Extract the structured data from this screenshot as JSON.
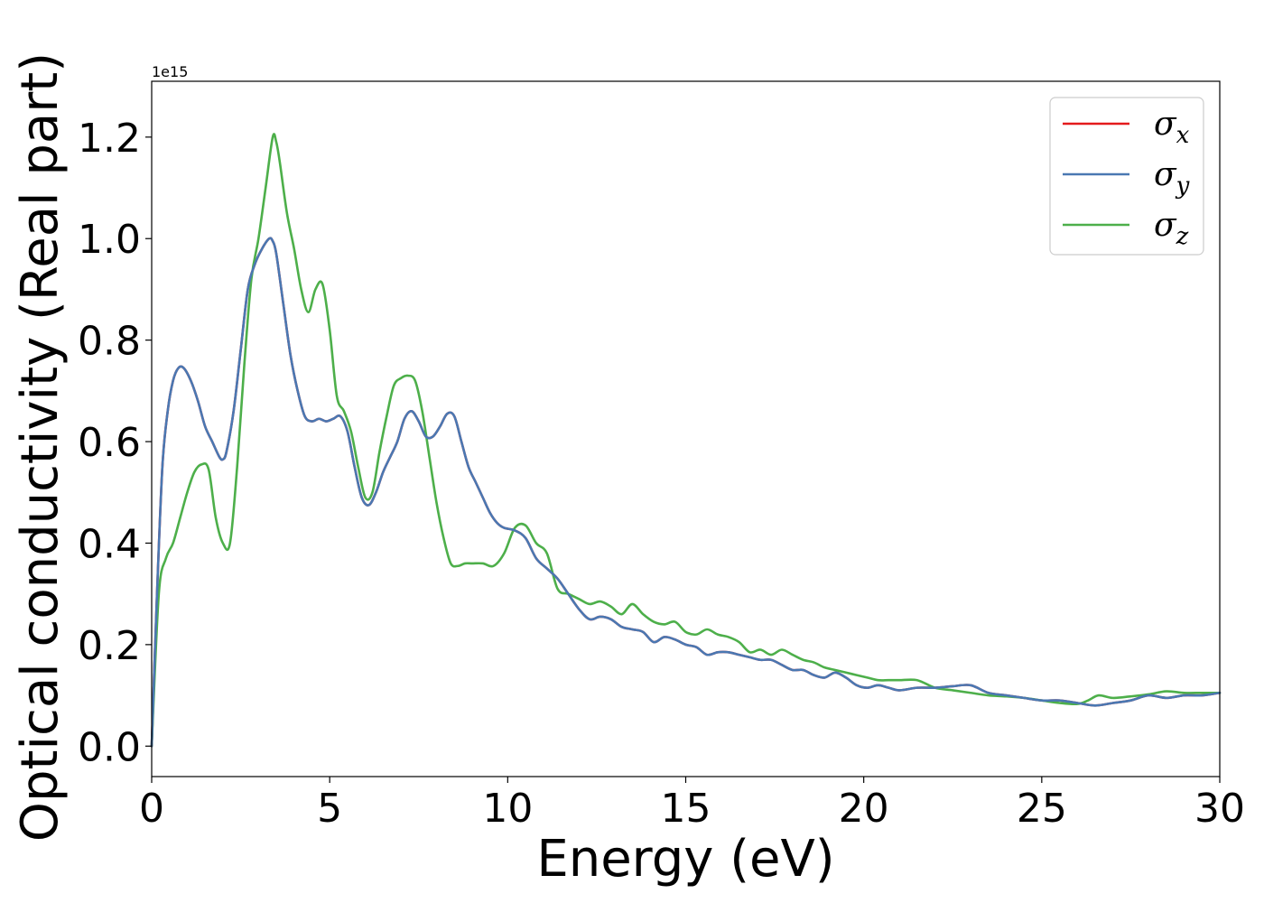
{
  "chart_data": {
    "type": "line",
    "title": "",
    "xlabel": "Energy (eV)",
    "ylabel": "Optical conductivity (Real part)",
    "y_offset_label": "1e15",
    "xlim": [
      0,
      30
    ],
    "ylim": [
      -0.06,
      1.31
    ],
    "x_ticks": [
      0,
      5,
      10,
      15,
      20,
      25,
      30
    ],
    "x_tick_labels": [
      "0",
      "5",
      "10",
      "15",
      "20",
      "25",
      "30"
    ],
    "y_ticks": [
      0.0,
      0.2,
      0.4,
      0.6,
      0.8,
      1.0,
      1.2
    ],
    "y_tick_labels": [
      "0.0",
      "0.2",
      "0.4",
      "0.6",
      "0.8",
      "1.0",
      "1.2"
    ],
    "grid": false,
    "legend_position": "top-right",
    "series": [
      {
        "name": "σx",
        "legend_base": "σ",
        "legend_sub": "x",
        "color": "#e41a1c",
        "x": [
          0,
          0.15,
          0.3,
          0.45,
          0.6,
          0.75,
          0.9,
          1.1,
          1.3,
          1.5,
          1.7,
          1.9,
          2.0,
          2.1,
          2.3,
          2.5,
          2.7,
          2.9,
          3.1,
          3.3,
          3.4,
          3.5,
          3.7,
          3.9,
          4.1,
          4.3,
          4.5,
          4.7,
          4.9,
          5.1,
          5.3,
          5.5,
          5.7,
          5.9,
          6.1,
          6.3,
          6.5,
          6.7,
          6.9,
          7.1,
          7.3,
          7.5,
          7.7,
          7.9,
          8.1,
          8.3,
          8.5,
          8.7,
          8.9,
          9.1,
          9.3,
          9.5,
          9.7,
          9.9,
          10.2,
          10.5,
          10.8,
          11.1,
          11.4,
          11.7,
          12.0,
          12.3,
          12.6,
          12.9,
          13.2,
          13.5,
          13.8,
          14.1,
          14.4,
          14.7,
          15.0,
          15.3,
          15.6,
          15.9,
          16.2,
          16.5,
          16.8,
          17.1,
          17.4,
          17.7,
          18.0,
          18.3,
          18.6,
          18.9,
          19.2,
          19.5,
          19.8,
          20.1,
          20.4,
          20.7,
          21.0,
          21.5,
          22.0,
          22.5,
          23.0,
          23.5,
          24.0,
          24.5,
          25.0,
          25.5,
          26.0,
          26.5,
          27.0,
          27.5,
          28.0,
          28.5,
          29.0,
          29.5,
          30.0
        ],
        "y": [
          0,
          0.3,
          0.55,
          0.66,
          0.72,
          0.745,
          0.745,
          0.72,
          0.68,
          0.63,
          0.6,
          0.57,
          0.565,
          0.58,
          0.66,
          0.78,
          0.9,
          0.95,
          0.98,
          1.0,
          0.995,
          0.97,
          0.87,
          0.77,
          0.7,
          0.65,
          0.64,
          0.645,
          0.64,
          0.645,
          0.65,
          0.62,
          0.55,
          0.49,
          0.475,
          0.5,
          0.54,
          0.57,
          0.6,
          0.645,
          0.66,
          0.64,
          0.61,
          0.61,
          0.63,
          0.655,
          0.65,
          0.6,
          0.55,
          0.52,
          0.49,
          0.46,
          0.44,
          0.43,
          0.425,
          0.41,
          0.37,
          0.35,
          0.33,
          0.3,
          0.27,
          0.25,
          0.255,
          0.25,
          0.235,
          0.23,
          0.225,
          0.205,
          0.215,
          0.21,
          0.2,
          0.195,
          0.18,
          0.185,
          0.185,
          0.18,
          0.175,
          0.17,
          0.17,
          0.16,
          0.15,
          0.15,
          0.14,
          0.135,
          0.145,
          0.135,
          0.12,
          0.115,
          0.12,
          0.115,
          0.11,
          0.115,
          0.115,
          0.118,
          0.12,
          0.105,
          0.1,
          0.095,
          0.09,
          0.09,
          0.085,
          0.08,
          0.085,
          0.09,
          0.1,
          0.095,
          0.1,
          0.1,
          0.105
        ]
      },
      {
        "name": "σy",
        "legend_base": "σ",
        "legend_sub": "y",
        "color": "#4a78b2",
        "x": [
          0,
          0.15,
          0.3,
          0.45,
          0.6,
          0.75,
          0.9,
          1.1,
          1.3,
          1.5,
          1.7,
          1.9,
          2.0,
          2.1,
          2.3,
          2.5,
          2.7,
          2.9,
          3.1,
          3.3,
          3.4,
          3.5,
          3.7,
          3.9,
          4.1,
          4.3,
          4.5,
          4.7,
          4.9,
          5.1,
          5.3,
          5.5,
          5.7,
          5.9,
          6.1,
          6.3,
          6.5,
          6.7,
          6.9,
          7.1,
          7.3,
          7.5,
          7.7,
          7.9,
          8.1,
          8.3,
          8.5,
          8.7,
          8.9,
          9.1,
          9.3,
          9.5,
          9.7,
          9.9,
          10.2,
          10.5,
          10.8,
          11.1,
          11.4,
          11.7,
          12.0,
          12.3,
          12.6,
          12.9,
          13.2,
          13.5,
          13.8,
          14.1,
          14.4,
          14.7,
          15.0,
          15.3,
          15.6,
          15.9,
          16.2,
          16.5,
          16.8,
          17.1,
          17.4,
          17.7,
          18.0,
          18.3,
          18.6,
          18.9,
          19.2,
          19.5,
          19.8,
          20.1,
          20.4,
          20.7,
          21.0,
          21.5,
          22.0,
          22.5,
          23.0,
          23.5,
          24.0,
          24.5,
          25.0,
          25.5,
          26.0,
          26.5,
          27.0,
          27.5,
          28.0,
          28.5,
          29.0,
          29.5,
          30.0
        ],
        "y": [
          0,
          0.3,
          0.55,
          0.66,
          0.72,
          0.745,
          0.745,
          0.72,
          0.68,
          0.63,
          0.6,
          0.57,
          0.565,
          0.58,
          0.66,
          0.78,
          0.9,
          0.95,
          0.98,
          1.0,
          0.995,
          0.97,
          0.87,
          0.77,
          0.7,
          0.65,
          0.64,
          0.645,
          0.64,
          0.645,
          0.65,
          0.62,
          0.55,
          0.49,
          0.475,
          0.5,
          0.54,
          0.57,
          0.6,
          0.645,
          0.66,
          0.64,
          0.61,
          0.61,
          0.63,
          0.655,
          0.65,
          0.6,
          0.55,
          0.52,
          0.49,
          0.46,
          0.44,
          0.43,
          0.425,
          0.41,
          0.37,
          0.35,
          0.33,
          0.3,
          0.27,
          0.25,
          0.255,
          0.25,
          0.235,
          0.23,
          0.225,
          0.205,
          0.215,
          0.21,
          0.2,
          0.195,
          0.18,
          0.185,
          0.185,
          0.18,
          0.175,
          0.17,
          0.17,
          0.16,
          0.15,
          0.15,
          0.14,
          0.135,
          0.145,
          0.135,
          0.12,
          0.115,
          0.12,
          0.115,
          0.11,
          0.115,
          0.115,
          0.118,
          0.12,
          0.105,
          0.1,
          0.095,
          0.09,
          0.09,
          0.085,
          0.08,
          0.085,
          0.09,
          0.1,
          0.095,
          0.1,
          0.1,
          0.105
        ]
      },
      {
        "name": "σz",
        "legend_base": "σ",
        "legend_sub": "z",
        "color": "#4daf4a",
        "x": [
          0,
          0.2,
          0.4,
          0.6,
          0.8,
          1.0,
          1.2,
          1.4,
          1.6,
          1.8,
          2.0,
          2.2,
          2.4,
          2.6,
          2.8,
          3.0,
          3.2,
          3.4,
          3.5,
          3.6,
          3.8,
          4.0,
          4.2,
          4.4,
          4.6,
          4.8,
          5.0,
          5.2,
          5.4,
          5.6,
          5.8,
          6.0,
          6.2,
          6.4,
          6.6,
          6.8,
          7.0,
          7.2,
          7.4,
          7.6,
          7.8,
          8.0,
          8.2,
          8.4,
          8.6,
          8.8,
          9.0,
          9.3,
          9.6,
          9.9,
          10.2,
          10.5,
          10.8,
          11.1,
          11.4,
          11.7,
          12.0,
          12.3,
          12.6,
          12.9,
          13.2,
          13.5,
          13.8,
          14.1,
          14.4,
          14.7,
          15.0,
          15.3,
          15.6,
          15.9,
          16.2,
          16.5,
          16.8,
          17.1,
          17.4,
          17.7,
          18.0,
          18.3,
          18.6,
          18.9,
          19.2,
          19.5,
          19.8,
          20.1,
          20.4,
          20.7,
          21.0,
          21.5,
          22.0,
          22.5,
          23.0,
          23.5,
          24.0,
          24.5,
          25.0,
          25.5,
          26.0,
          26.3,
          26.6,
          27.0,
          27.5,
          28.0,
          28.5,
          29.0,
          29.5,
          30.0
        ],
        "y": [
          0,
          0.3,
          0.37,
          0.4,
          0.45,
          0.5,
          0.54,
          0.555,
          0.545,
          0.45,
          0.4,
          0.4,
          0.55,
          0.75,
          0.92,
          1.0,
          1.1,
          1.2,
          1.19,
          1.15,
          1.05,
          0.98,
          0.9,
          0.855,
          0.9,
          0.91,
          0.82,
          0.69,
          0.66,
          0.62,
          0.55,
          0.49,
          0.5,
          0.58,
          0.65,
          0.71,
          0.725,
          0.73,
          0.72,
          0.66,
          0.57,
          0.48,
          0.41,
          0.36,
          0.355,
          0.36,
          0.36,
          0.36,
          0.355,
          0.38,
          0.43,
          0.435,
          0.4,
          0.38,
          0.31,
          0.3,
          0.29,
          0.28,
          0.285,
          0.275,
          0.26,
          0.28,
          0.26,
          0.245,
          0.24,
          0.245,
          0.225,
          0.22,
          0.23,
          0.22,
          0.215,
          0.205,
          0.185,
          0.19,
          0.18,
          0.19,
          0.18,
          0.17,
          0.165,
          0.155,
          0.15,
          0.145,
          0.14,
          0.135,
          0.13,
          0.13,
          0.13,
          0.13,
          0.115,
          0.11,
          0.105,
          0.1,
          0.098,
          0.095,
          0.09,
          0.085,
          0.083,
          0.09,
          0.1,
          0.095,
          0.098,
          0.102,
          0.108,
          0.105,
          0.105,
          0.105
        ]
      }
    ]
  }
}
